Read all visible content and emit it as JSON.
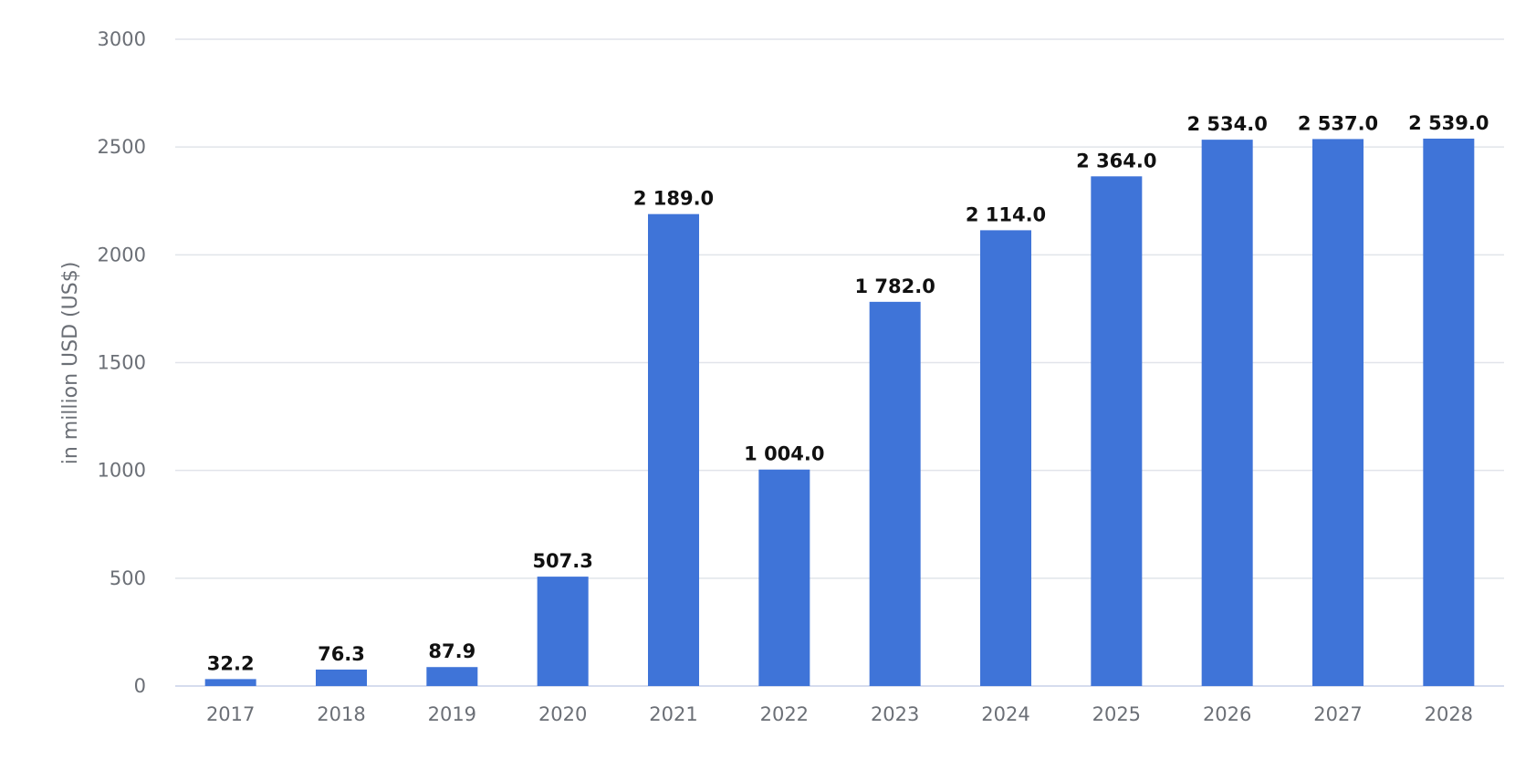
{
  "chart_data": {
    "type": "bar",
    "categories": [
      "2017",
      "2018",
      "2019",
      "2020",
      "2021",
      "2022",
      "2023",
      "2024",
      "2025",
      "2026",
      "2027",
      "2028"
    ],
    "values": [
      32.2,
      76.3,
      87.9,
      507.3,
      2189.0,
      1004.0,
      1782.0,
      2114.0,
      2364.0,
      2534.0,
      2537.0,
      2539.0
    ],
    "value_labels": [
      "32.2",
      "76.3",
      "87.9",
      "507.3",
      "2 189.0",
      "1 004.0",
      "1 782.0",
      "2 114.0",
      "2 364.0",
      "2 534.0",
      "2 537.0",
      "2 539.0"
    ],
    "ylabel": "in million USD (US$)",
    "xlabel": "",
    "ylim": [
      0,
      3000
    ],
    "yticks": [
      "0",
      "500",
      "1000",
      "1500",
      "2000",
      "2500",
      "3000"
    ],
    "grid": true,
    "legend": "none",
    "bar_color": "#3f74d8"
  }
}
